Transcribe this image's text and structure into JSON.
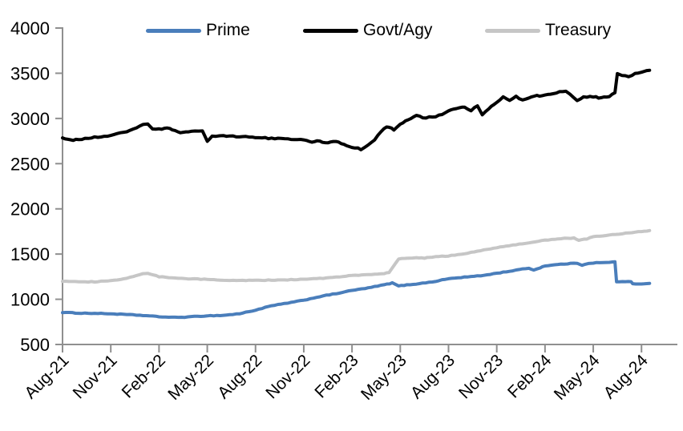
{
  "chart_data": {
    "type": "line",
    "title": "",
    "xlabel": "",
    "ylabel": "",
    "grid": false,
    "legend_position": "top",
    "axis_color": "#8f8f8f",
    "ylim": [
      500,
      4000
    ],
    "y_ticks": [
      500,
      1000,
      1500,
      2000,
      2500,
      3000,
      3500,
      4000
    ],
    "x_tick_labels": [
      "Aug-21",
      "Nov-21",
      "Feb-22",
      "May-22",
      "Aug-22",
      "Nov-22",
      "Feb-23",
      "May-23",
      "Aug-23",
      "Nov-23",
      "Feb-24",
      "May-24",
      "Aug-24"
    ],
    "x_unit": "months since Aug-2021 (3 months per tick)",
    "series": [
      {
        "name": "Prime",
        "color": "#4a7ebb",
        "points": [
          [
            0,
            855
          ],
          [
            1,
            847
          ],
          [
            2,
            844
          ],
          [
            3,
            839
          ],
          [
            4,
            831
          ],
          [
            5,
            821
          ],
          [
            6,
            807
          ],
          [
            7,
            799
          ],
          [
            8,
            806
          ],
          [
            9,
            818
          ],
          [
            10,
            822
          ],
          [
            11,
            840
          ],
          [
            12,
            880
          ],
          [
            13,
            928
          ],
          [
            14,
            958
          ],
          [
            15,
            990
          ],
          [
            16,
            1030
          ],
          [
            17,
            1062
          ],
          [
            18,
            1098
          ],
          [
            19,
            1125
          ],
          [
            20,
            1160
          ],
          [
            20.5,
            1180
          ],
          [
            20.9,
            1148
          ],
          [
            21.4,
            1158
          ],
          [
            22,
            1170
          ],
          [
            23,
            1192
          ],
          [
            24,
            1228
          ],
          [
            25,
            1245
          ],
          [
            26,
            1260
          ],
          [
            27,
            1288
          ],
          [
            28,
            1316
          ],
          [
            29,
            1345
          ],
          [
            29.3,
            1322
          ],
          [
            29.7,
            1350
          ],
          [
            30,
            1370
          ],
          [
            31,
            1388
          ],
          [
            32,
            1400
          ],
          [
            32.3,
            1378
          ],
          [
            32.7,
            1398
          ],
          [
            33,
            1403
          ],
          [
            34,
            1407
          ],
          [
            34.35,
            1415
          ],
          [
            34.45,
            1196
          ],
          [
            35,
            1193
          ],
          [
            35.35,
            1194
          ],
          [
            35.45,
            1170
          ],
          [
            36,
            1171
          ],
          [
            36.5,
            1176
          ]
        ]
      },
      {
        "name": "Govt/Agy",
        "color": "#000000",
        "points": [
          [
            0,
            2778
          ],
          [
            0.5,
            2758
          ],
          [
            1,
            2768
          ],
          [
            2,
            2790
          ],
          [
            3,
            2812
          ],
          [
            4,
            2852
          ],
          [
            5,
            2928
          ],
          [
            5.3,
            2935
          ],
          [
            5.6,
            2888
          ],
          [
            6,
            2880
          ],
          [
            6.5,
            2900
          ],
          [
            7,
            2862
          ],
          [
            7.5,
            2840
          ],
          [
            8,
            2856
          ],
          [
            8.7,
            2862
          ],
          [
            9,
            2748
          ],
          [
            9.3,
            2800
          ],
          [
            10,
            2806
          ],
          [
            11,
            2800
          ],
          [
            12,
            2790
          ],
          [
            13,
            2780
          ],
          [
            14,
            2772
          ],
          [
            15,
            2762
          ],
          [
            15.5,
            2742
          ],
          [
            16,
            2750
          ],
          [
            16.5,
            2726
          ],
          [
            17,
            2748
          ],
          [
            17.5,
            2712
          ],
          [
            18,
            2685
          ],
          [
            18.55,
            2660
          ],
          [
            19,
            2700
          ],
          [
            19.4,
            2760
          ],
          [
            19.8,
            2850
          ],
          [
            20,
            2895
          ],
          [
            20.3,
            2908
          ],
          [
            20.6,
            2866
          ],
          [
            21,
            2930
          ],
          [
            21.5,
            2988
          ],
          [
            22,
            3030
          ],
          [
            22.4,
            3010
          ],
          [
            23,
            3012
          ],
          [
            23.6,
            3045
          ],
          [
            24,
            3090
          ],
          [
            24.5,
            3105
          ],
          [
            25,
            3130
          ],
          [
            25.4,
            3085
          ],
          [
            25.8,
            3140
          ],
          [
            26.1,
            3040
          ],
          [
            26.5,
            3110
          ],
          [
            27,
            3175
          ],
          [
            27.4,
            3235
          ],
          [
            27.8,
            3195
          ],
          [
            28.2,
            3240
          ],
          [
            28.6,
            3205
          ],
          [
            29,
            3230
          ],
          [
            29.5,
            3250
          ],
          [
            30,
            3255
          ],
          [
            30.5,
            3268
          ],
          [
            30.9,
            3295
          ],
          [
            31.3,
            3300
          ],
          [
            32,
            3200
          ],
          [
            32.4,
            3235
          ],
          [
            33,
            3240
          ],
          [
            33.5,
            3225
          ],
          [
            34,
            3248
          ],
          [
            34.35,
            3285
          ],
          [
            34.5,
            3490
          ],
          [
            34.8,
            3472
          ],
          [
            35.2,
            3465
          ],
          [
            35.6,
            3495
          ],
          [
            36,
            3515
          ],
          [
            36.5,
            3532
          ]
        ]
      },
      {
        "name": "Treasury",
        "color": "#c6c6c6",
        "points": [
          [
            0,
            1200
          ],
          [
            1,
            1196
          ],
          [
            2,
            1192
          ],
          [
            3,
            1206
          ],
          [
            4,
            1232
          ],
          [
            5,
            1285
          ],
          [
            5.3,
            1290
          ],
          [
            6,
            1250
          ],
          [
            7,
            1233
          ],
          [
            8,
            1226
          ],
          [
            9,
            1220
          ],
          [
            10,
            1213
          ],
          [
            11,
            1208
          ],
          [
            12,
            1210
          ],
          [
            13,
            1212
          ],
          [
            14,
            1216
          ],
          [
            15,
            1222
          ],
          [
            16,
            1230
          ],
          [
            17,
            1245
          ],
          [
            18,
            1262
          ],
          [
            19,
            1272
          ],
          [
            20,
            1285
          ],
          [
            20.3,
            1295
          ],
          [
            20.9,
            1448
          ],
          [
            21.3,
            1452
          ],
          [
            22,
            1462
          ],
          [
            22.5,
            1455
          ],
          [
            23,
            1468
          ],
          [
            24,
            1480
          ],
          [
            25,
            1505
          ],
          [
            26,
            1540
          ],
          [
            27,
            1570
          ],
          [
            28,
            1600
          ],
          [
            29,
            1625
          ],
          [
            30,
            1652
          ],
          [
            31,
            1672
          ],
          [
            31.8,
            1678
          ],
          [
            32.1,
            1655
          ],
          [
            32.6,
            1668
          ],
          [
            33,
            1690
          ],
          [
            34,
            1710
          ],
          [
            35,
            1730
          ],
          [
            36,
            1750
          ],
          [
            36.5,
            1760
          ]
        ]
      }
    ]
  }
}
